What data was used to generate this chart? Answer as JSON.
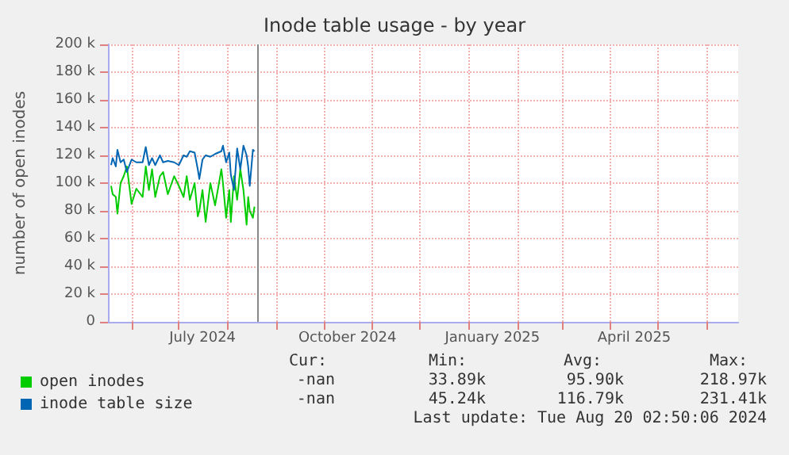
{
  "chart_data": {
    "type": "line",
    "title": "Inode table usage - by year",
    "ylabel": "number of open inodes",
    "x": [
      "2024-05-19",
      "2024-05-20",
      "2024-05-22",
      "2024-05-23",
      "2024-05-25",
      "2024-05-27",
      "2024-05-29",
      "2024-06-01",
      "2024-06-04",
      "2024-06-08",
      "2024-06-10",
      "2024-06-12",
      "2024-06-14",
      "2024-06-16",
      "2024-06-19",
      "2024-06-21",
      "2024-06-24",
      "2024-06-28",
      "2024-07-01",
      "2024-07-04",
      "2024-07-06",
      "2024-07-08",
      "2024-07-11",
      "2024-07-13",
      "2024-07-14",
      "2024-07-16",
      "2024-07-18",
      "2024-07-21",
      "2024-07-24",
      "2024-07-28",
      "2024-07-29",
      "2024-07-31",
      "2024-08-02",
      "2024-08-03",
      "2024-08-05",
      "2024-08-07",
      "2024-08-09",
      "2024-08-11",
      "2024-08-13",
      "2024-08-14",
      "2024-08-15",
      "2024-08-17",
      "2024-08-18"
    ],
    "series": [
      {
        "name": "open inodes",
        "color": "#00cc00",
        "values": [
          98000,
          92000,
          90000,
          78000,
          100000,
          105000,
          112000,
          85000,
          96000,
          90000,
          112000,
          95000,
          110000,
          90000,
          105000,
          108000,
          92000,
          105000,
          98000,
          90000,
          105000,
          88000,
          100000,
          76000,
          80000,
          95000,
          72000,
          100000,
          84000,
          110000,
          100000,
          75000,
          95000,
          72000,
          105000,
          88000,
          110000,
          95000,
          70000,
          90000,
          80000,
          75000,
          83000
        ]
      },
      {
        "name": "inode table size",
        "color": "#0066b3",
        "values": [
          113000,
          118000,
          112000,
          124000,
          115000,
          117000,
          108000,
          117000,
          115000,
          115000,
          126000,
          113000,
          118000,
          113000,
          120000,
          115000,
          116000,
          115000,
          113000,
          120000,
          119000,
          123000,
          122000,
          110000,
          103000,
          117000,
          120000,
          119000,
          121000,
          123000,
          127000,
          115000,
          122000,
          106000,
          95000,
          125000,
          110000,
          127000,
          120000,
          112000,
          98000,
          124000,
          123000
        ]
      }
    ],
    "xlim": [
      "2024-05-17",
      "2025-06-21"
    ],
    "xticks": [
      {
        "value": "2024-06-01",
        "label": null
      },
      {
        "value": "2024-07-01",
        "label": null
      },
      {
        "value": "2024-07-16",
        "label": "July 2024"
      },
      {
        "value": "2024-08-01",
        "label": null
      },
      {
        "value": "2024-09-01",
        "label": null
      },
      {
        "value": "2024-10-01",
        "label": null
      },
      {
        "value": "2024-10-16",
        "label": "October 2024"
      },
      {
        "value": "2024-11-01",
        "label": null
      },
      {
        "value": "2024-12-01",
        "label": null
      },
      {
        "value": "2025-01-01",
        "label": null
      },
      {
        "value": "2025-01-16",
        "label": "January 2025"
      },
      {
        "value": "2025-02-01",
        "label": null
      },
      {
        "value": "2025-03-01",
        "label": null
      },
      {
        "value": "2025-04-01",
        "label": null
      },
      {
        "value": "2025-04-16",
        "label": "April 2025"
      },
      {
        "value": "2025-05-01",
        "label": null
      },
      {
        "value": "2025-06-01",
        "label": null
      }
    ],
    "ylim": [
      0,
      200000
    ],
    "yticks": [
      0,
      {
        "value": 20000,
        "label": "20 k"
      },
      {
        "value": 40000,
        "label": "40 k"
      },
      {
        "value": 60000,
        "label": "60 k"
      },
      {
        "value": 80000,
        "label": "80 k"
      },
      {
        "value": 100000,
        "label": "100 k"
      },
      {
        "value": 120000,
        "label": "120 k"
      },
      {
        "value": 140000,
        "label": "140 k"
      },
      {
        "value": 160000,
        "label": "160 k"
      },
      {
        "value": 180000,
        "label": "180 k"
      },
      {
        "value": 200000,
        "label": "200 k"
      }
    ],
    "ref_lines": [
      {
        "axis": "x",
        "value": "2024-08-20",
        "color": "#888888"
      }
    ],
    "grid": true,
    "legend": "bottom left",
    "marker": "none",
    "line_style": "solid",
    "annotations": [
      "Cur:",
      "Min:",
      "Avg:",
      "Max:",
      "-nan",
      "33.89k",
      "95.90k",
      "218.97k",
      "-nan",
      "45.24k",
      "116.79k",
      "231.41k",
      "Last update: Tue Aug 20 02:50:06 2024"
    ]
  }
}
